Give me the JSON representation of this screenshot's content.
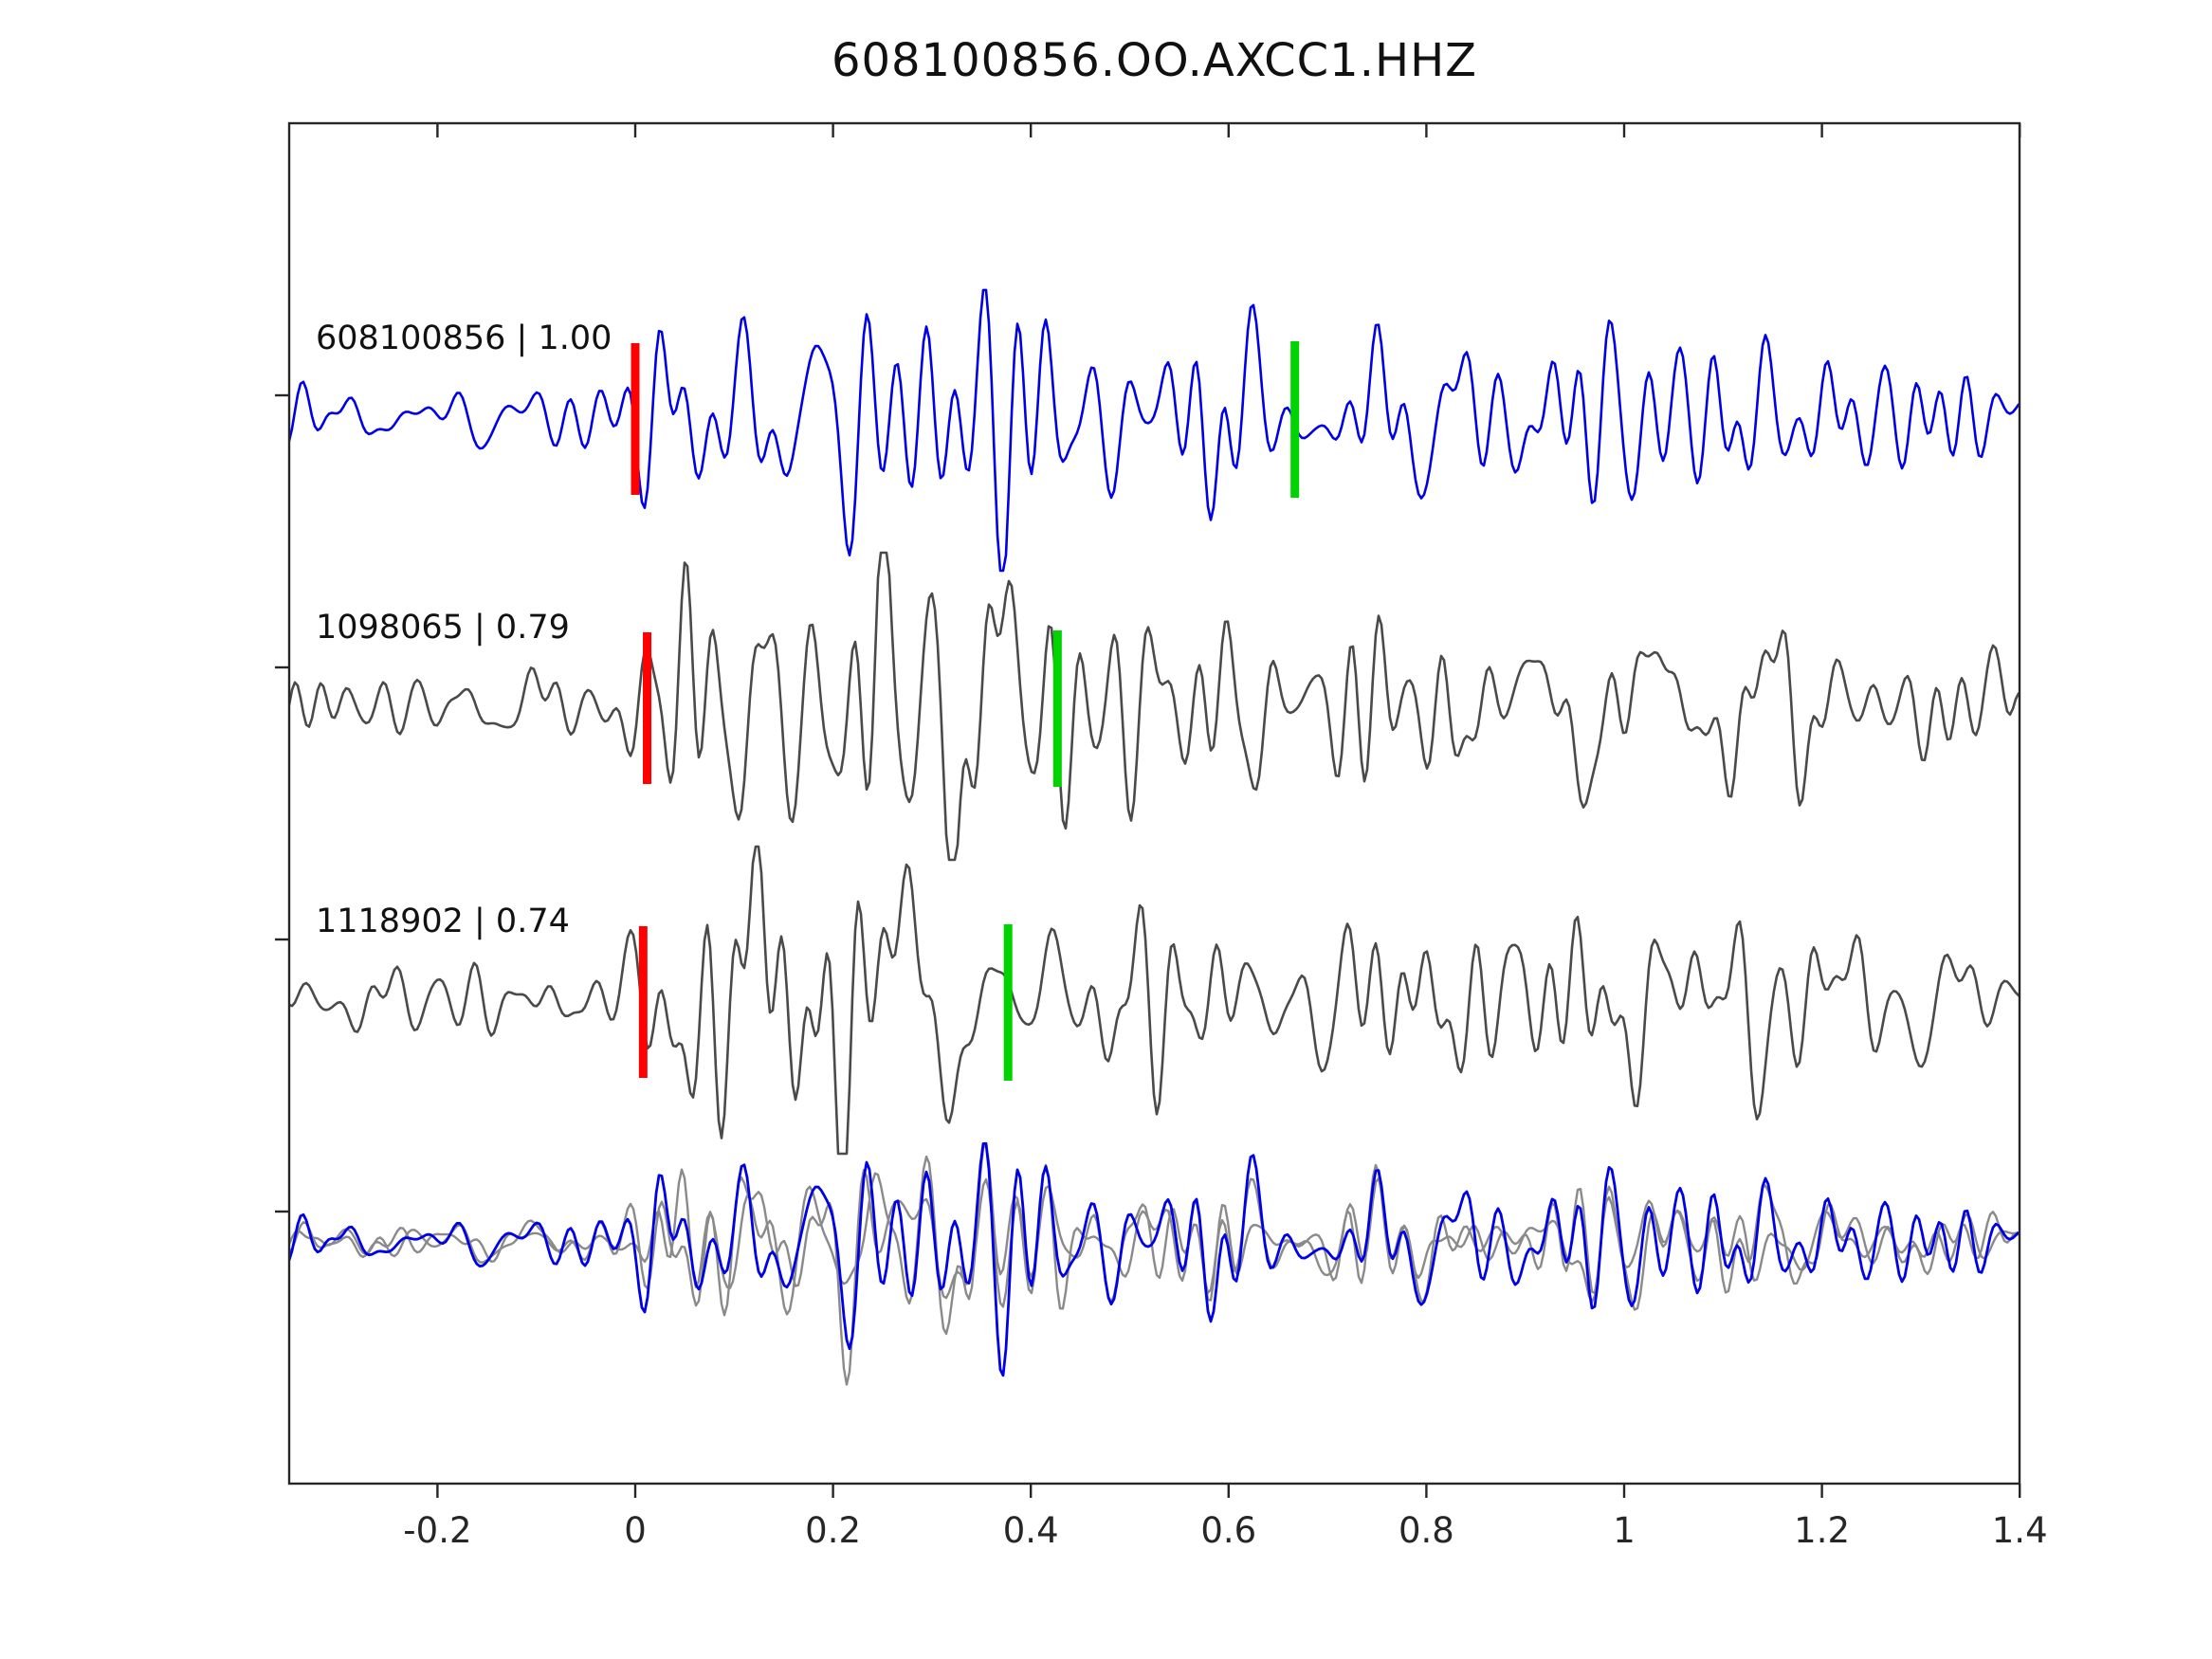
{
  "title": "608100856.OO.AXCC1.HHZ",
  "chart_data": {
    "type": "line",
    "title": "608100856.OO.AXCC1.HHZ",
    "xlabel": "",
    "ylabel": "",
    "xlim": [
      -0.35,
      1.4
    ],
    "grid": false,
    "legend": "none",
    "x_ticks": [
      {
        "value": -0.2,
        "label": "-0.2"
      },
      {
        "value": 0,
        "label": "0"
      },
      {
        "value": 0.2,
        "label": "0.2"
      },
      {
        "value": 0.4,
        "label": "0.4"
      },
      {
        "value": 0.6,
        "label": "0.6"
      },
      {
        "value": 0.8,
        "label": "0.8"
      },
      {
        "value": 1,
        "label": "1"
      },
      {
        "value": 1.2,
        "label": "1.2"
      },
      {
        "value": 1.4,
        "label": "1.4"
      }
    ],
    "traces": [
      {
        "id": "608100856",
        "label": "608100856 | 1.00",
        "similarity": 1.0,
        "color": "#0000e8",
        "red_marker_t": 0.0,
        "green_marker_t": 0.667,
        "seed": 17
      },
      {
        "id": "1098065",
        "label": "1098065 | 0.79",
        "similarity": 0.79,
        "color": "#4a4a4a",
        "red_marker_t": 0.012,
        "green_marker_t": 0.427,
        "seed": 42
      },
      {
        "id": "1118902",
        "label": "1118902 | 0.74",
        "similarity": 0.74,
        "color": "#4a4a4a",
        "red_marker_t": 0.008,
        "green_marker_t": 0.377,
        "seed": 77
      }
    ],
    "overlay": {
      "gray_color": "#8a8a8a",
      "blue_color": "#0000e8"
    },
    "colors": {
      "pick_red": "#ff0000",
      "pick_green": "#00d400",
      "axis": "#262626",
      "label_text": "#111111"
    }
  }
}
